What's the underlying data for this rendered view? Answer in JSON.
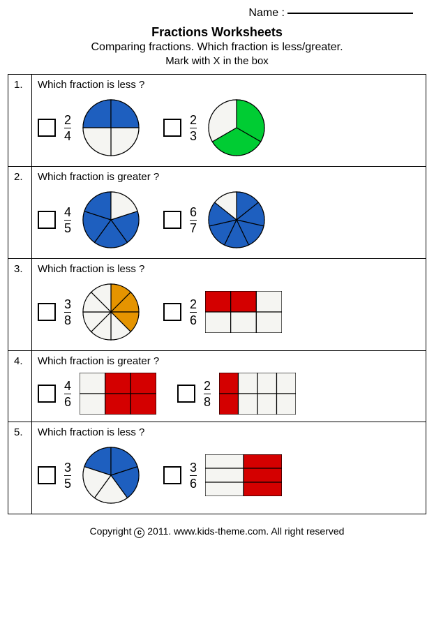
{
  "name_label": "Name :",
  "title": "Fractions Worksheets",
  "subtitle": "Comparing fractions. Which fraction is less/greater.",
  "instruction": "Mark with X  in the box",
  "colors": {
    "blue": "#1e5fbf",
    "green": "#00cc33",
    "orange": "#e59400",
    "red": "#d40000",
    "dotfill": "#f5f5f2",
    "stroke": "#000000"
  },
  "questions": [
    {
      "num": "1.",
      "prompt": "Which fraction is less ?",
      "a": {
        "numer": "2",
        "denom": "4",
        "shape": "pie",
        "total": 4,
        "filled": 2,
        "start": 180,
        "color": "#1e5fbf"
      },
      "b": {
        "numer": "2",
        "denom": "3",
        "shape": "pie",
        "total": 3,
        "filled": 2,
        "start": -90,
        "color": "#00cc33"
      }
    },
    {
      "num": "2.",
      "prompt": "Which fraction is greater ?",
      "a": {
        "numer": "4",
        "denom": "5",
        "shape": "pie",
        "total": 5,
        "filled": 4,
        "start": -18,
        "color": "#1e5fbf"
      },
      "b": {
        "numer": "6",
        "denom": "7",
        "shape": "pie",
        "total": 7,
        "filled": 6,
        "start": -90,
        "color": "#1e5fbf"
      }
    },
    {
      "num": "3.",
      "prompt": "Which fraction is less ?",
      "a": {
        "numer": "3",
        "denom": "8",
        "shape": "pie",
        "total": 8,
        "filled": 3,
        "start": -90,
        "color": "#e59400"
      },
      "b": {
        "numer": "2",
        "denom": "6",
        "shape": "rect",
        "cols": 3,
        "rows": 2,
        "filled_cells": [
          0,
          1
        ],
        "color": "#d40000"
      }
    },
    {
      "num": "4.",
      "prompt": "Which fraction is greater ?",
      "a": {
        "numer": "4",
        "denom": "6",
        "shape": "rect",
        "cols": 3,
        "rows": 2,
        "filled_cells": [
          1,
          2,
          4,
          5
        ],
        "color": "#d40000"
      },
      "b": {
        "numer": "2",
        "denom": "8",
        "shape": "rect",
        "cols": 4,
        "rows": 2,
        "filled_cells": [
          0,
          4
        ],
        "color": "#d40000"
      }
    },
    {
      "num": "5.",
      "prompt": "Which fraction is less ?",
      "a": {
        "numer": "3",
        "denom": "5",
        "shape": "pie",
        "total": 5,
        "filled": 3,
        "start": 198,
        "color": "#1e5fbf"
      },
      "b": {
        "numer": "3",
        "denom": "6",
        "shape": "rect",
        "cols": 2,
        "rows": 3,
        "filled_cells": [
          1,
          3,
          5
        ],
        "color": "#d40000"
      }
    }
  ],
  "footer_prefix": "Copyright ",
  "footer_year": " 2011. www.kids-theme.com. All right reserved"
}
